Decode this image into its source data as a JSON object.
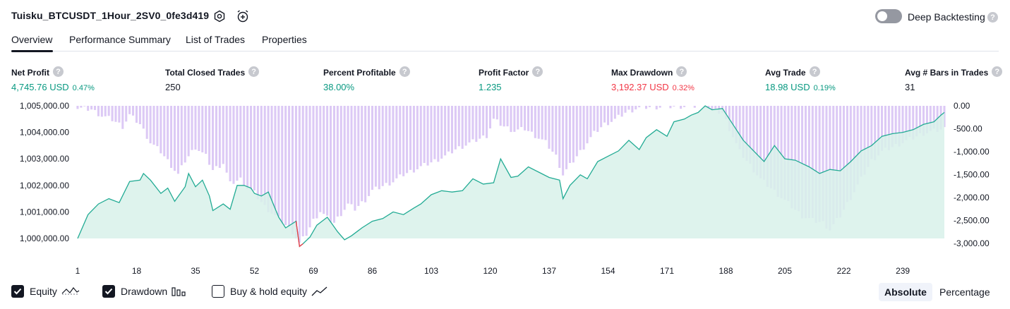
{
  "header": {
    "strategy_title": "Tuisku_BTCUSDT_1Hour_2SV0_0fe3d419",
    "settings_icon": "gear-icon",
    "alert_icon": "alarm-clock-plus-icon",
    "deep_backtesting_label": "Deep Backtesting",
    "deep_backtesting_enabled": false,
    "help_glyph": "?"
  },
  "tabs": [
    {
      "label": "Overview",
      "active": true
    },
    {
      "label": "Performance Summary",
      "active": false
    },
    {
      "label": "List of Trades",
      "active": false
    },
    {
      "label": "Properties",
      "active": false
    }
  ],
  "metrics": [
    {
      "label": "Net Profit",
      "value": "4,745.76 USD",
      "pct": "0.47%",
      "color": "green"
    },
    {
      "label": "Total Closed Trades",
      "value": "250",
      "pct": "",
      "color": "dark"
    },
    {
      "label": "Percent Profitable",
      "value": "38.00%",
      "pct": "",
      "color": "green"
    },
    {
      "label": "Profit Factor",
      "value": "1.235",
      "pct": "",
      "color": "green"
    },
    {
      "label": "Max Drawdown",
      "value": "3,192.37 USD",
      "pct": "0.32%",
      "color": "red"
    },
    {
      "label": "Avg Trade",
      "value": "18.98 USD",
      "pct": "0.19%",
      "color": "green"
    },
    {
      "label": "Avg # Bars in Trades",
      "value": "31",
      "pct": "",
      "color": "dark"
    }
  ],
  "chart_data": {
    "type": "area",
    "equity_series_name": "Equity",
    "drawdown_series_name": "Drawdown",
    "y_left_ticks": [
      "1,005,000.00",
      "1,004,000.00",
      "1,003,000.00",
      "1,002,000.00",
      "1,001,000.00",
      "1,000,000.00"
    ],
    "y_left_values": [
      1005000,
      1004000,
      1003000,
      1002000,
      1001000,
      1000000
    ],
    "y_left_range": [
      999500,
      1005000
    ],
    "y_right_ticks": [
      "0.00",
      "-500.00",
      "-1,000.00",
      "-1,500.00",
      "-2,000.00",
      "-2,500.00",
      "-3,000.00"
    ],
    "y_right_values": [
      0,
      -500,
      -1000,
      -1500,
      -2000,
      -2500,
      -3000
    ],
    "y_right_range": [
      -3000,
      0
    ],
    "x_ticks": [
      "1",
      "18",
      "35",
      "52",
      "69",
      "86",
      "103",
      "120",
      "137",
      "154",
      "171",
      "188",
      "205",
      "222",
      "239"
    ],
    "x_tick_values": [
      1,
      18,
      35,
      52,
      69,
      86,
      103,
      120,
      137,
      154,
      171,
      188,
      205,
      222,
      239
    ],
    "x_range": [
      1,
      251
    ],
    "equity_baseline": 1000000,
    "equity_keypoints": [
      [
        1,
        1000000
      ],
      [
        4,
        1000900
      ],
      [
        7,
        1001300
      ],
      [
        10,
        1001500
      ],
      [
        13,
        1001350
      ],
      [
        16,
        1002150
      ],
      [
        19,
        1002200
      ],
      [
        20,
        1002450
      ],
      [
        22,
        1002200
      ],
      [
        25,
        1001700
      ],
      [
        27,
        1001900
      ],
      [
        29,
        1001400
      ],
      [
        32,
        1001950
      ],
      [
        33,
        1002450
      ],
      [
        35,
        1001950
      ],
      [
        37,
        1002200
      ],
      [
        39,
        1001600
      ],
      [
        40,
        1001050
      ],
      [
        43,
        1001300
      ],
      [
        45,
        1001100
      ],
      [
        47,
        1002000
      ],
      [
        49,
        1002000
      ],
      [
        51,
        1001900
      ],
      [
        52,
        1001700
      ],
      [
        54,
        1001600
      ],
      [
        56,
        1001750
      ],
      [
        59,
        1000800
      ],
      [
        61,
        1000400
      ],
      [
        64,
        1000650
      ],
      [
        65,
        999700
      ],
      [
        66,
        999800
      ],
      [
        68,
        1000050
      ],
      [
        70,
        1000500
      ],
      [
        73,
        1000800
      ],
      [
        76,
        1000250
      ],
      [
        78,
        999950
      ],
      [
        80,
        1000100
      ],
      [
        83,
        1000400
      ],
      [
        86,
        1000650
      ],
      [
        89,
        1000750
      ],
      [
        92,
        1001000
      ],
      [
        95,
        1000900
      ],
      [
        98,
        1001150
      ],
      [
        100,
        1001300
      ],
      [
        103,
        1001650
      ],
      [
        106,
        1001800
      ],
      [
        109,
        1001750
      ],
      [
        112,
        1001800
      ],
      [
        115,
        1002250
      ],
      [
        118,
        1002050
      ],
      [
        121,
        1002100
      ],
      [
        123,
        1003000
      ],
      [
        126,
        1002300
      ],
      [
        128,
        1002350
      ],
      [
        131,
        1002700
      ],
      [
        134,
        1002500
      ],
      [
        137,
        1002300
      ],
      [
        140,
        1002200
      ],
      [
        141,
        1001500
      ],
      [
        143,
        1002000
      ],
      [
        146,
        1002400
      ],
      [
        148,
        1002250
      ],
      [
        151,
        1002900
      ],
      [
        154,
        1003100
      ],
      [
        157,
        1003300
      ],
      [
        160,
        1003700
      ],
      [
        163,
        1003350
      ],
      [
        165,
        1003800
      ],
      [
        168,
        1004100
      ],
      [
        171,
        1003850
      ],
      [
        173,
        1004400
      ],
      [
        176,
        1004500
      ],
      [
        178,
        1004650
      ],
      [
        180,
        1004750
      ],
      [
        182,
        1005000
      ],
      [
        184,
        1004850
      ],
      [
        187,
        1004900
      ],
      [
        190,
        1004300
      ],
      [
        193,
        1003700
      ],
      [
        196,
        1003300
      ],
      [
        199,
        1002900
      ],
      [
        202,
        1003500
      ],
      [
        205,
        1003000
      ],
      [
        208,
        1002950
      ],
      [
        212,
        1002700
      ],
      [
        215,
        1002450
      ],
      [
        218,
        1002600
      ],
      [
        221,
        1002550
      ],
      [
        224,
        1002900
      ],
      [
        227,
        1003300
      ],
      [
        230,
        1003500
      ],
      [
        233,
        1003850
      ],
      [
        236,
        1003950
      ],
      [
        239,
        1004000
      ],
      [
        242,
        1004100
      ],
      [
        245,
        1004300
      ],
      [
        248,
        1004400
      ],
      [
        250,
        1004650
      ],
      [
        251,
        1004750
      ]
    ],
    "drawdown_keypoints": [
      [
        1,
        -50
      ],
      [
        5,
        -80
      ],
      [
        8,
        -220
      ],
      [
        11,
        -300
      ],
      [
        14,
        -450
      ],
      [
        16,
        -200
      ],
      [
        19,
        -400
      ],
      [
        22,
        -800
      ],
      [
        25,
        -1000
      ],
      [
        28,
        -1300
      ],
      [
        30,
        -1500
      ],
      [
        32,
        -1200
      ],
      [
        35,
        -900
      ],
      [
        38,
        -1100
      ],
      [
        40,
        -1400
      ],
      [
        43,
        -1250
      ],
      [
        45,
        -1700
      ],
      [
        48,
        -1600
      ],
      [
        50,
        -1800
      ],
      [
        52,
        -1900
      ],
      [
        55,
        -2200
      ],
      [
        58,
        -2400
      ],
      [
        61,
        -2600
      ],
      [
        63,
        -2750
      ],
      [
        65,
        -3000
      ],
      [
        67,
        -2800
      ],
      [
        69,
        -2500
      ],
      [
        71,
        -2300
      ],
      [
        73,
        -2450
      ],
      [
        75,
        -2550
      ],
      [
        77,
        -2350
      ],
      [
        79,
        -2150
      ],
      [
        81,
        -2250
      ],
      [
        84,
        -2050
      ],
      [
        86,
        -1850
      ],
      [
        89,
        -1750
      ],
      [
        92,
        -1650
      ],
      [
        95,
        -1500
      ],
      [
        98,
        -1400
      ],
      [
        101,
        -1300
      ],
      [
        104,
        -1200
      ],
      [
        107,
        -1100
      ],
      [
        110,
        -950
      ],
      [
        113,
        -850
      ],
      [
        116,
        -750
      ],
      [
        119,
        -650
      ],
      [
        121,
        -300
      ],
      [
        124,
        -450
      ],
      [
        127,
        -550
      ],
      [
        130,
        -500
      ],
      [
        133,
        -650
      ],
      [
        136,
        -800
      ],
      [
        139,
        -1100
      ],
      [
        141,
        -1500
      ],
      [
        144,
        -1200
      ],
      [
        147,
        -900
      ],
      [
        150,
        -600
      ],
      [
        153,
        -400
      ],
      [
        156,
        -300
      ],
      [
        159,
        -150
      ],
      [
        162,
        -60
      ],
      [
        165,
        -30
      ],
      [
        170,
        -20
      ],
      [
        175,
        -10
      ],
      [
        180,
        -5
      ],
      [
        182,
        0
      ],
      [
        184,
        -100
      ],
      [
        187,
        -150
      ],
      [
        189,
        -500
      ],
      [
        192,
        -1000
      ],
      [
        195,
        -1300
      ],
      [
        198,
        -1600
      ],
      [
        201,
        -1800
      ],
      [
        204,
        -2000
      ],
      [
        207,
        -2200
      ],
      [
        210,
        -2400
      ],
      [
        213,
        -2500
      ],
      [
        216,
        -2550
      ],
      [
        218,
        -2700
      ],
      [
        221,
        -2400
      ],
      [
        224,
        -2000
      ],
      [
        227,
        -1600
      ],
      [
        230,
        -1200
      ],
      [
        233,
        -1000
      ],
      [
        236,
        -900
      ],
      [
        239,
        -800
      ],
      [
        242,
        -700
      ],
      [
        245,
        -600
      ],
      [
        248,
        -550
      ],
      [
        251,
        -500
      ]
    ],
    "colors": {
      "equity_line": "#22ab94",
      "equity_area": "#d8f1ea",
      "drawdown_bar": "#b39ddb",
      "drawdown_bar_light": "#dcc9f5",
      "below_start": "#f23645"
    }
  },
  "legend": {
    "equity_label": "Equity",
    "equity_checked": true,
    "drawdown_label": "Drawdown",
    "drawdown_checked": true,
    "buyhold_label": "Buy & hold equity",
    "buyhold_checked": false
  },
  "scale_toggle": {
    "absolute_label": "Absolute",
    "percentage_label": "Percentage",
    "active": "Absolute"
  }
}
